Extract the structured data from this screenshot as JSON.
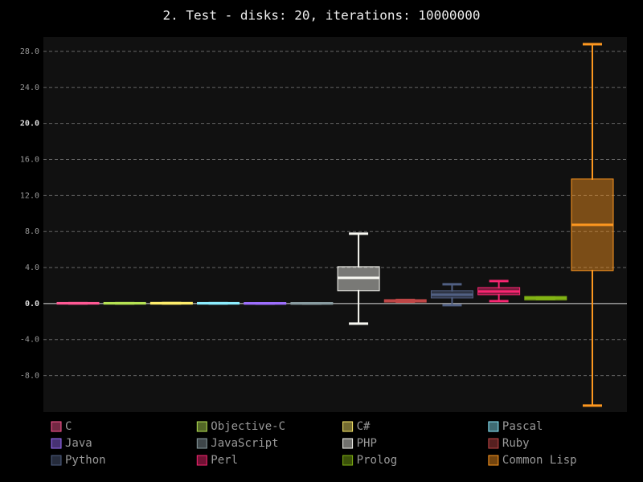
{
  "chart_data": {
    "type": "box",
    "title": "2. Test - disks: 20, iterations: 10000000",
    "ylim": [
      -12.05,
      29.6
    ],
    "yticks": [
      {
        "value": -8,
        "label": "-8.0"
      },
      {
        "value": -4,
        "label": "-4.0"
      },
      {
        "value": 0,
        "label": "0.0"
      },
      {
        "value": 4,
        "label": "4.0"
      },
      {
        "value": 8,
        "label": "8.0"
      },
      {
        "value": 12,
        "label": "12.0"
      },
      {
        "value": 16,
        "label": "16.0"
      },
      {
        "value": 20,
        "label": "20.0"
      },
      {
        "value": 24,
        "label": "24.0"
      },
      {
        "value": 28,
        "label": "28.0"
      }
    ],
    "grid": true,
    "series": [
      {
        "name": "C",
        "color": "#ff5995",
        "values": [
          0.01,
          0.02,
          0.03,
          0.04,
          0.05
        ]
      },
      {
        "name": "Objective-C",
        "color": "#b6e354",
        "values": [
          0.01,
          0.02,
          0.03,
          0.04,
          0.05
        ]
      },
      {
        "name": "C#",
        "color": "#feed6c",
        "values": [
          0.01,
          0.02,
          0.03,
          0.05,
          0.06
        ]
      },
      {
        "name": "Pascal",
        "color": "#8cedff",
        "values": [
          0.01,
          0.02,
          0.03,
          0.04,
          0.05
        ]
      },
      {
        "name": "Java",
        "color": "#9e6ffe",
        "values": [
          0.0,
          0.01,
          0.02,
          0.03,
          0.04
        ]
      },
      {
        "name": "JavaScript",
        "color": "#899ca1",
        "values": [
          0.0,
          0.01,
          0.02,
          0.03,
          0.04
        ]
      },
      {
        "name": "PHP",
        "color": "#f8f8f2",
        "values": [
          -2.23,
          1.52,
          2.85,
          4.01,
          7.76
        ]
      },
      {
        "name": "Ruby",
        "color": "#bf4646",
        "values": [
          0.2,
          0.25,
          0.3,
          0.35,
          0.4
        ]
      },
      {
        "name": "Python",
        "color": "#516083",
        "values": [
          -0.18,
          0.71,
          0.98,
          1.34,
          2.14
        ]
      },
      {
        "name": "Perl",
        "color": "#f92672",
        "values": [
          0.27,
          1.07,
          1.34,
          1.69,
          2.5
        ]
      },
      {
        "name": "Prolog",
        "color": "#82b414",
        "values": [
          0.5,
          0.5,
          0.6,
          0.7,
          0.7
        ]
      },
      {
        "name": "Common Lisp",
        "color": "#fd971f",
        "values": [
          -11.33,
          3.75,
          8.74,
          13.74,
          28.8
        ]
      }
    ]
  }
}
